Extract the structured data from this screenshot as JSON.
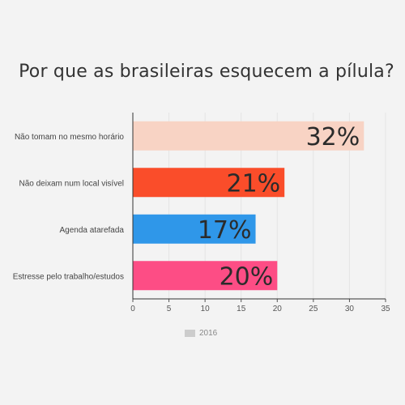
{
  "title": "Por que as brasileiras esquecem a pílula?",
  "chart_data": {
    "type": "bar",
    "orientation": "horizontal",
    "title": "Por que as brasileiras esquecem a pílula?",
    "categories": [
      "Não tomam no mesmo horário",
      "Não deixam num local visível",
      "Agenda atarefada",
      "Estresse pelo trabalho/estudos"
    ],
    "series": [
      {
        "name": "2016",
        "values": [
          32,
          21,
          17,
          20
        ]
      }
    ],
    "data_labels": [
      "32%",
      "21%",
      "17%",
      "20%"
    ],
    "bar_colors": [
      "#f8d3c4",
      "#fa4d2a",
      "#2f97e9",
      "#fd4d85"
    ],
    "xlim": [
      0,
      35
    ],
    "xticks": [
      0,
      5,
      10,
      15,
      20,
      25,
      30,
      35
    ],
    "grid": true,
    "legend_position": "bottom",
    "legend_color": "#cccccc"
  }
}
